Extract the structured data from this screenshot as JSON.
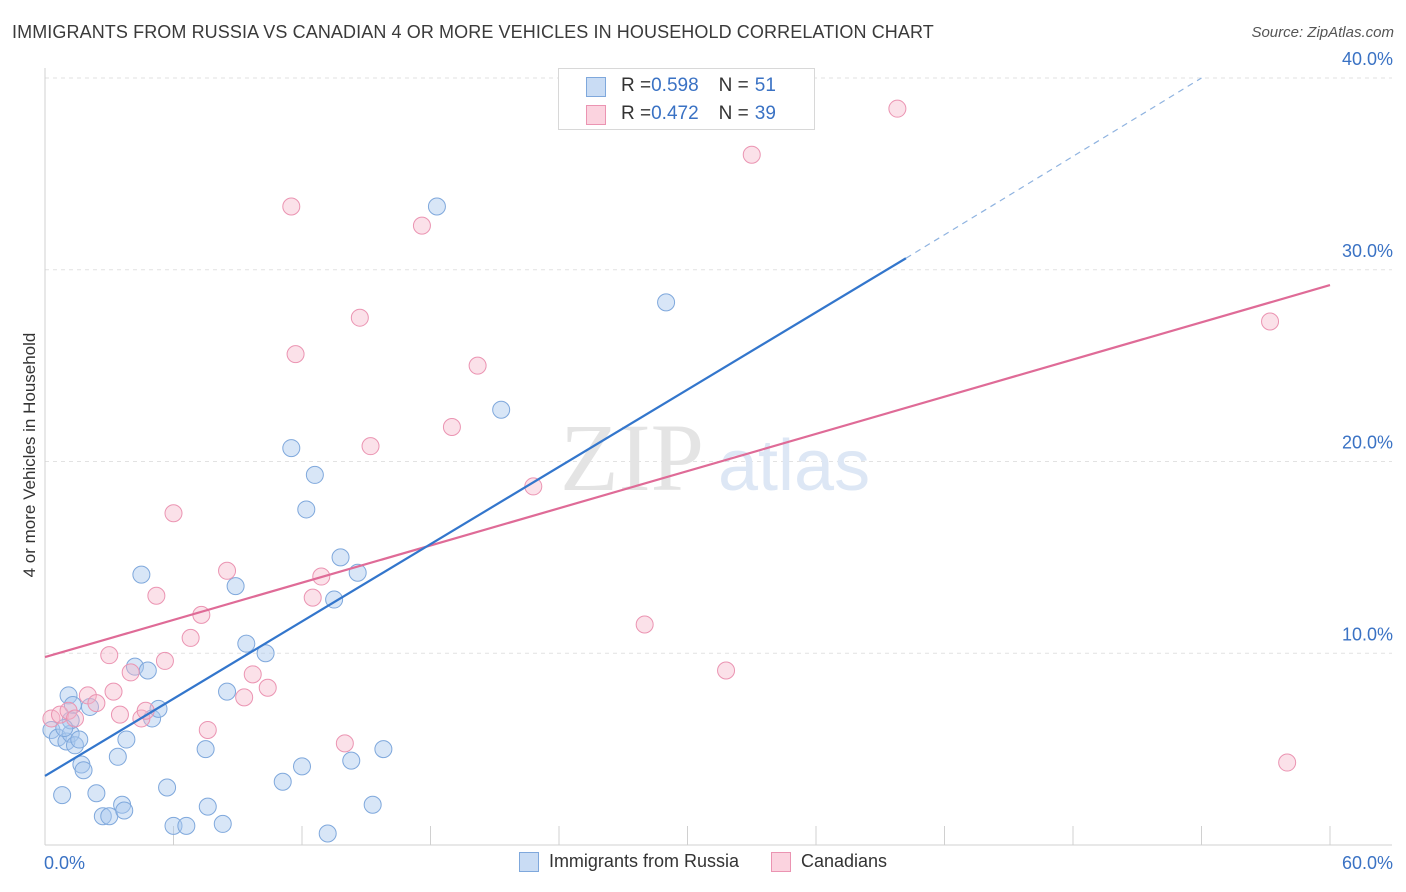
{
  "header": {
    "title": "IMMIGRANTS FROM RUSSIA VS CANADIAN 4 OR MORE VEHICLES IN HOUSEHOLD CORRELATION CHART",
    "source": "Source: ZipAtlas.com"
  },
  "watermark": {
    "zip": "ZIP",
    "atlas": "atlas"
  },
  "stats_legend": {
    "rows": [
      {
        "r_label": "R = ",
        "r_value": "0.598",
        "n_label": "N = ",
        "n_value": "51",
        "color": "#a9c8ee"
      },
      {
        "r_label": "R = ",
        "r_value": "0.472",
        "n_label": "N = ",
        "n_value": "39",
        "color": "#f5b5c9"
      }
    ]
  },
  "chart_data": {
    "type": "scatter",
    "title": "IMMIGRANTS FROM RUSSIA VS CANADIAN 4 OR MORE VEHICLES IN HOUSEHOLD CORRELATION CHART",
    "xlabel": "",
    "ylabel": "4 or more Vehicles in Household",
    "xlim": [
      0,
      60
    ],
    "ylim": [
      0,
      40
    ],
    "x_tick_labels": [
      "0.0%",
      "60.0%"
    ],
    "y_tick_labels": [
      "10.0%",
      "20.0%",
      "30.0%",
      "40.0%"
    ],
    "y_ticks": [
      10,
      20,
      30,
      40
    ],
    "grid": true,
    "legend_position": "bottom",
    "series": [
      {
        "name": "Immigrants from Russia",
        "color": "#a9c8ee",
        "line_color": "#3376cc",
        "trend": {
          "x0": 0,
          "y0": 3.6,
          "x1": 40.2,
          "y1": 30.6,
          "dash_x1": 54,
          "dash_y1": 40
        },
        "points": [
          [
            0.3,
            6.0
          ],
          [
            0.6,
            5.6
          ],
          [
            0.8,
            2.6
          ],
          [
            1.0,
            5.4
          ],
          [
            1.1,
            7.8
          ],
          [
            1.2,
            5.8
          ],
          [
            1.3,
            7.3
          ],
          [
            1.4,
            5.2
          ],
          [
            1.6,
            5.5
          ],
          [
            1.7,
            4.2
          ],
          [
            1.8,
            3.9
          ],
          [
            2.1,
            7.2
          ],
          [
            2.4,
            2.7
          ],
          [
            2.7,
            1.5
          ],
          [
            3.0,
            1.5
          ],
          [
            3.4,
            4.6
          ],
          [
            3.6,
            2.1
          ],
          [
            3.7,
            1.8
          ],
          [
            3.8,
            5.5
          ],
          [
            4.2,
            9.3
          ],
          [
            4.5,
            14.1
          ],
          [
            4.8,
            9.1
          ],
          [
            5.0,
            6.6
          ],
          [
            5.3,
            7.1
          ],
          [
            5.7,
            3.0
          ],
          [
            6.0,
            1.0
          ],
          [
            6.6,
            1.0
          ],
          [
            7.5,
            5.0
          ],
          [
            7.6,
            2.0
          ],
          [
            8.3,
            1.1
          ],
          [
            8.5,
            8.0
          ],
          [
            8.9,
            13.5
          ],
          [
            9.4,
            10.5
          ],
          [
            10.3,
            10.0
          ],
          [
            11.1,
            3.3
          ],
          [
            11.5,
            20.7
          ],
          [
            12.0,
            4.1
          ],
          [
            12.2,
            17.5
          ],
          [
            12.6,
            19.3
          ],
          [
            13.2,
            0.6
          ],
          [
            13.5,
            12.8
          ],
          [
            13.8,
            15.0
          ],
          [
            14.3,
            4.4
          ],
          [
            14.6,
            14.2
          ],
          [
            15.3,
            2.1
          ],
          [
            15.8,
            5.0
          ],
          [
            18.3,
            33.3
          ],
          [
            21.3,
            22.7
          ],
          [
            29.0,
            28.3
          ],
          [
            1.2,
            6.5
          ],
          [
            0.9,
            6.1
          ]
        ]
      },
      {
        "name": "Canadians",
        "color": "#f5b5c9",
        "line_color": "#df6b97",
        "trend": {
          "x0": 0,
          "y0": 9.8,
          "x1": 60,
          "y1": 29.2
        },
        "points": [
          [
            0.3,
            6.6
          ],
          [
            0.7,
            6.8
          ],
          [
            1.1,
            7.0
          ],
          [
            1.4,
            6.6
          ],
          [
            2.0,
            7.8
          ],
          [
            2.4,
            7.4
          ],
          [
            3.0,
            9.9
          ],
          [
            3.2,
            8.0
          ],
          [
            3.5,
            6.8
          ],
          [
            4.0,
            9.0
          ],
          [
            4.5,
            6.6
          ],
          [
            4.7,
            7.0
          ],
          [
            5.2,
            13.0
          ],
          [
            5.6,
            9.6
          ],
          [
            6.0,
            17.3
          ],
          [
            6.8,
            10.8
          ],
          [
            7.3,
            12.0
          ],
          [
            7.6,
            6.0
          ],
          [
            8.5,
            14.3
          ],
          [
            9.3,
            7.7
          ],
          [
            9.7,
            8.9
          ],
          [
            10.4,
            8.2
          ],
          [
            11.5,
            33.3
          ],
          [
            11.7,
            25.6
          ],
          [
            12.5,
            12.9
          ],
          [
            12.9,
            14.0
          ],
          [
            14.0,
            5.3
          ],
          [
            14.7,
            27.5
          ],
          [
            15.2,
            20.8
          ],
          [
            17.6,
            32.3
          ],
          [
            19.0,
            21.8
          ],
          [
            20.2,
            25.0
          ],
          [
            22.8,
            18.7
          ],
          [
            28.0,
            11.5
          ],
          [
            31.8,
            9.1
          ],
          [
            33.0,
            36.0
          ],
          [
            39.8,
            38.4
          ],
          [
            57.2,
            27.3
          ],
          [
            58.0,
            4.3
          ]
        ]
      }
    ]
  }
}
